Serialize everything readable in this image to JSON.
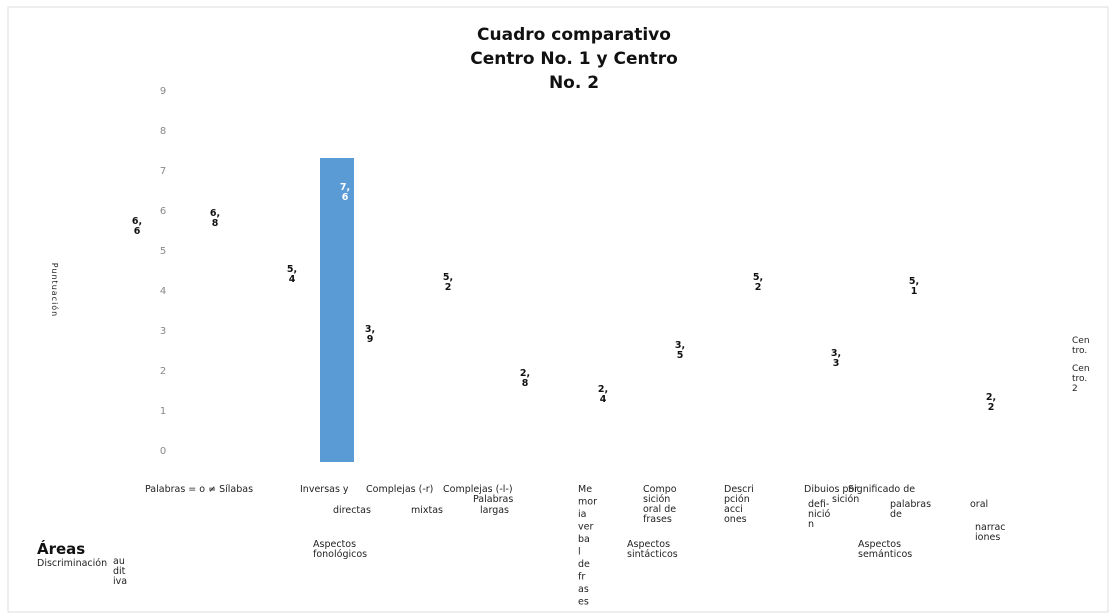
{
  "chart_data": {
    "type": "bar",
    "title": "Cuadro comparativo Centro No. 1 y Centro No. 2",
    "y_label": "Puntuación",
    "categories": [
      null,
      null,
      null,
      null,
      null,
      null,
      null,
      null,
      null,
      null,
      null,
      null,
      null
    ],
    "series": [
      {
        "name": "Centro.",
        "color": "#000000",
        "values": [
          6.6,
          6.8,
          5.4,
          null,
          3.9,
          5.2,
          2.8,
          2.4,
          3.5,
          5.2,
          3.3,
          5.1,
          2.2
        ],
        "value_labels": [
          "6,6",
          "6,8",
          "5,4",
          null,
          "3,9",
          "5,2",
          "2,8",
          "2,4",
          "3,5",
          "5,2",
          "3,3",
          "5,1",
          "2,2"
        ]
      },
      {
        "name": "Centro. 2",
        "color": "#5b9bd5",
        "values": [
          null,
          null,
          null,
          7.6,
          null,
          null,
          null,
          null,
          null,
          null,
          null,
          null,
          null
        ],
        "value_labels": [
          null,
          null,
          null,
          "7,6",
          null,
          null,
          null,
          null,
          null,
          null,
          null,
          null,
          null
        ]
      }
    ],
    "ylim": [
      0,
      9
    ],
    "yticks": [
      0,
      1,
      2,
      3,
      4,
      5,
      6,
      7,
      8,
      9
    ],
    "axis_texts": [
      [
        "Palabras = o ≠ Sílabas"
      ],
      [
        "Inversas y"
      ],
      [
        "directas"
      ],
      [
        "Complejas (-r)"
      ],
      [
        "mixtas"
      ],
      [
        "Complejas (-l-)"
      ],
      [
        "Palabras"
      ],
      [
        "largas"
      ],
      [
        "Me",
        "mor",
        "ia",
        "ver",
        "ba",
        "l",
        "de",
        "fr",
        "as",
        "es"
      ],
      [
        "Compo",
        "sición",
        "oral de",
        "frases"
      ],
      [
        "Descri",
        "pción",
        "acci",
        "ones"
      ],
      [
        "Dibuios por"
      ],
      [
        "Significado de"
      ],
      [
        "sición"
      ],
      [
        "defi-",
        "nició",
        "n"
      ],
      [
        "palabras",
        "de"
      ],
      [
        "oral"
      ],
      [
        "narrac",
        "iones"
      ],
      [
        "Aspectos",
        "fonológicos"
      ],
      [
        "Aspectos",
        "sintácticos"
      ],
      [
        "Aspectos",
        "semánticos"
      ],
      [
        "Áreas"
      ],
      [
        "Discriminación"
      ],
      [
        "au",
        "dit",
        "iva"
      ]
    ]
  }
}
